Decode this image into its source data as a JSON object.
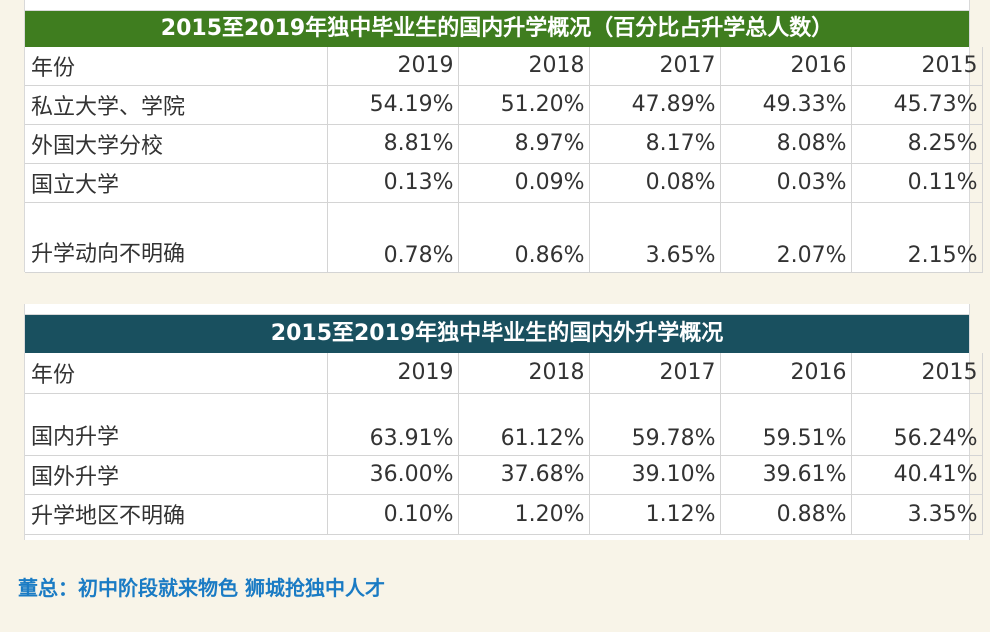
{
  "table1": {
    "title": "2015至2019年独中毕业生的国内升学概况（百分比占升学总人数）",
    "header": [
      "年份",
      "2019",
      "2018",
      "2017",
      "2016",
      "2015"
    ],
    "rows": [
      [
        "私立大学、学院",
        "54.19%",
        "51.20%",
        "47.89%",
        "49.33%",
        "45.73%"
      ],
      [
        "外国大学分校",
        "8.81%",
        "8.97%",
        "8.17%",
        "8.08%",
        "8.25%"
      ],
      [
        "国立大学",
        "0.13%",
        "0.09%",
        "0.08%",
        "0.03%",
        "0.11%"
      ],
      [
        "升学动向不明确",
        "0.78%",
        "0.86%",
        "3.65%",
        "2.07%",
        "2.15%"
      ]
    ]
  },
  "table2": {
    "title": "2015至2019年独中毕业生的国内外升学概况",
    "header": [
      "年份",
      "2019",
      "2018",
      "2017",
      "2016",
      "2015"
    ],
    "rows": [
      [
        "国内升学",
        "63.91%",
        "61.12%",
        "59.78%",
        "59.51%",
        "56.24%"
      ],
      [
        "国外升学",
        "36.00%",
        "37.68%",
        "39.10%",
        "39.61%",
        "40.41%"
      ],
      [
        "升学地区不明确",
        "0.10%",
        "1.20%",
        "1.12%",
        "0.88%",
        "3.35%"
      ]
    ]
  },
  "footer_link": "董总：初中阶段就来物色 狮城抢独中人才",
  "colors": {
    "title1_bg": "#3f7d1f",
    "title2_bg": "#19505f",
    "footer_link": "#1a7bc4",
    "page_bg": "#f8f4e8"
  }
}
